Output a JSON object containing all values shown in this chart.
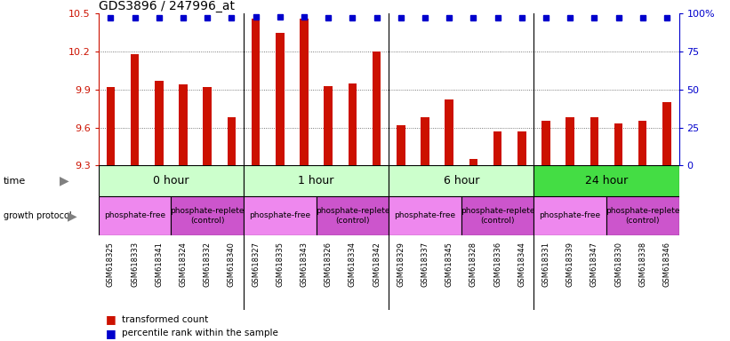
{
  "title": "GDS3896 / 247996_at",
  "samples": [
    "GSM618325",
    "GSM618333",
    "GSM618341",
    "GSM618324",
    "GSM618332",
    "GSM618340",
    "GSM618327",
    "GSM618335",
    "GSM618343",
    "GSM618326",
    "GSM618334",
    "GSM618342",
    "GSM618329",
    "GSM618337",
    "GSM618345",
    "GSM618328",
    "GSM618336",
    "GSM618344",
    "GSM618331",
    "GSM618339",
    "GSM618347",
    "GSM618330",
    "GSM618338",
    "GSM618346"
  ],
  "transformed_count": [
    9.92,
    10.18,
    9.97,
    9.94,
    9.92,
    9.68,
    10.46,
    10.35,
    10.46,
    9.93,
    9.95,
    10.2,
    9.62,
    9.68,
    9.82,
    9.35,
    9.57,
    9.57,
    9.65,
    9.68,
    9.68,
    9.63,
    9.65,
    9.8
  ],
  "percentile_rank": [
    97,
    97,
    97,
    97,
    97,
    97,
    98,
    98,
    98,
    97,
    97,
    97,
    97,
    97,
    97,
    97,
    97,
    97,
    97,
    97,
    97,
    97,
    97,
    97
  ],
  "ylim_left": [
    9.3,
    10.5
  ],
  "yticks_left": [
    9.3,
    9.6,
    9.9,
    10.2,
    10.5
  ],
  "ylim_right": [
    0,
    100
  ],
  "yticks_right": [
    0,
    25,
    50,
    75,
    100
  ],
  "bar_color": "#cc1100",
  "dot_color": "#0000cc",
  "time_groups": [
    {
      "label": "0 hour",
      "start": 0,
      "end": 6,
      "color": "#ccffcc"
    },
    {
      "label": "1 hour",
      "start": 6,
      "end": 12,
      "color": "#ccffcc"
    },
    {
      "label": "6 hour",
      "start": 12,
      "end": 18,
      "color": "#ccffcc"
    },
    {
      "label": "24 hour",
      "start": 18,
      "end": 24,
      "color": "#44dd44"
    }
  ],
  "protocol_groups": [
    {
      "label": "phosphate-free",
      "start": 0,
      "end": 3,
      "pf": true
    },
    {
      "label": "phosphate-replete\n(control)",
      "start": 3,
      "end": 6,
      "pf": false
    },
    {
      "label": "phosphate-free",
      "start": 6,
      "end": 9,
      "pf": true
    },
    {
      "label": "phosphate-replete\n(control)",
      "start": 9,
      "end": 12,
      "pf": false
    },
    {
      "label": "phosphate-free",
      "start": 12,
      "end": 15,
      "pf": true
    },
    {
      "label": "phosphate-replete\n(control)",
      "start": 15,
      "end": 18,
      "pf": false
    },
    {
      "label": "phosphate-free",
      "start": 18,
      "end": 21,
      "pf": true
    },
    {
      "label": "phosphate-replete\n(control)",
      "start": 21,
      "end": 24,
      "pf": false
    }
  ],
  "pf_color": "#ee88ee",
  "pr_color": "#cc55cc",
  "title_color": "#000000",
  "left_axis_color": "#cc1100",
  "right_axis_color": "#0000cc",
  "grid_color": "#555555",
  "sample_bg_color": "#dddddd",
  "bar_width": 0.35
}
